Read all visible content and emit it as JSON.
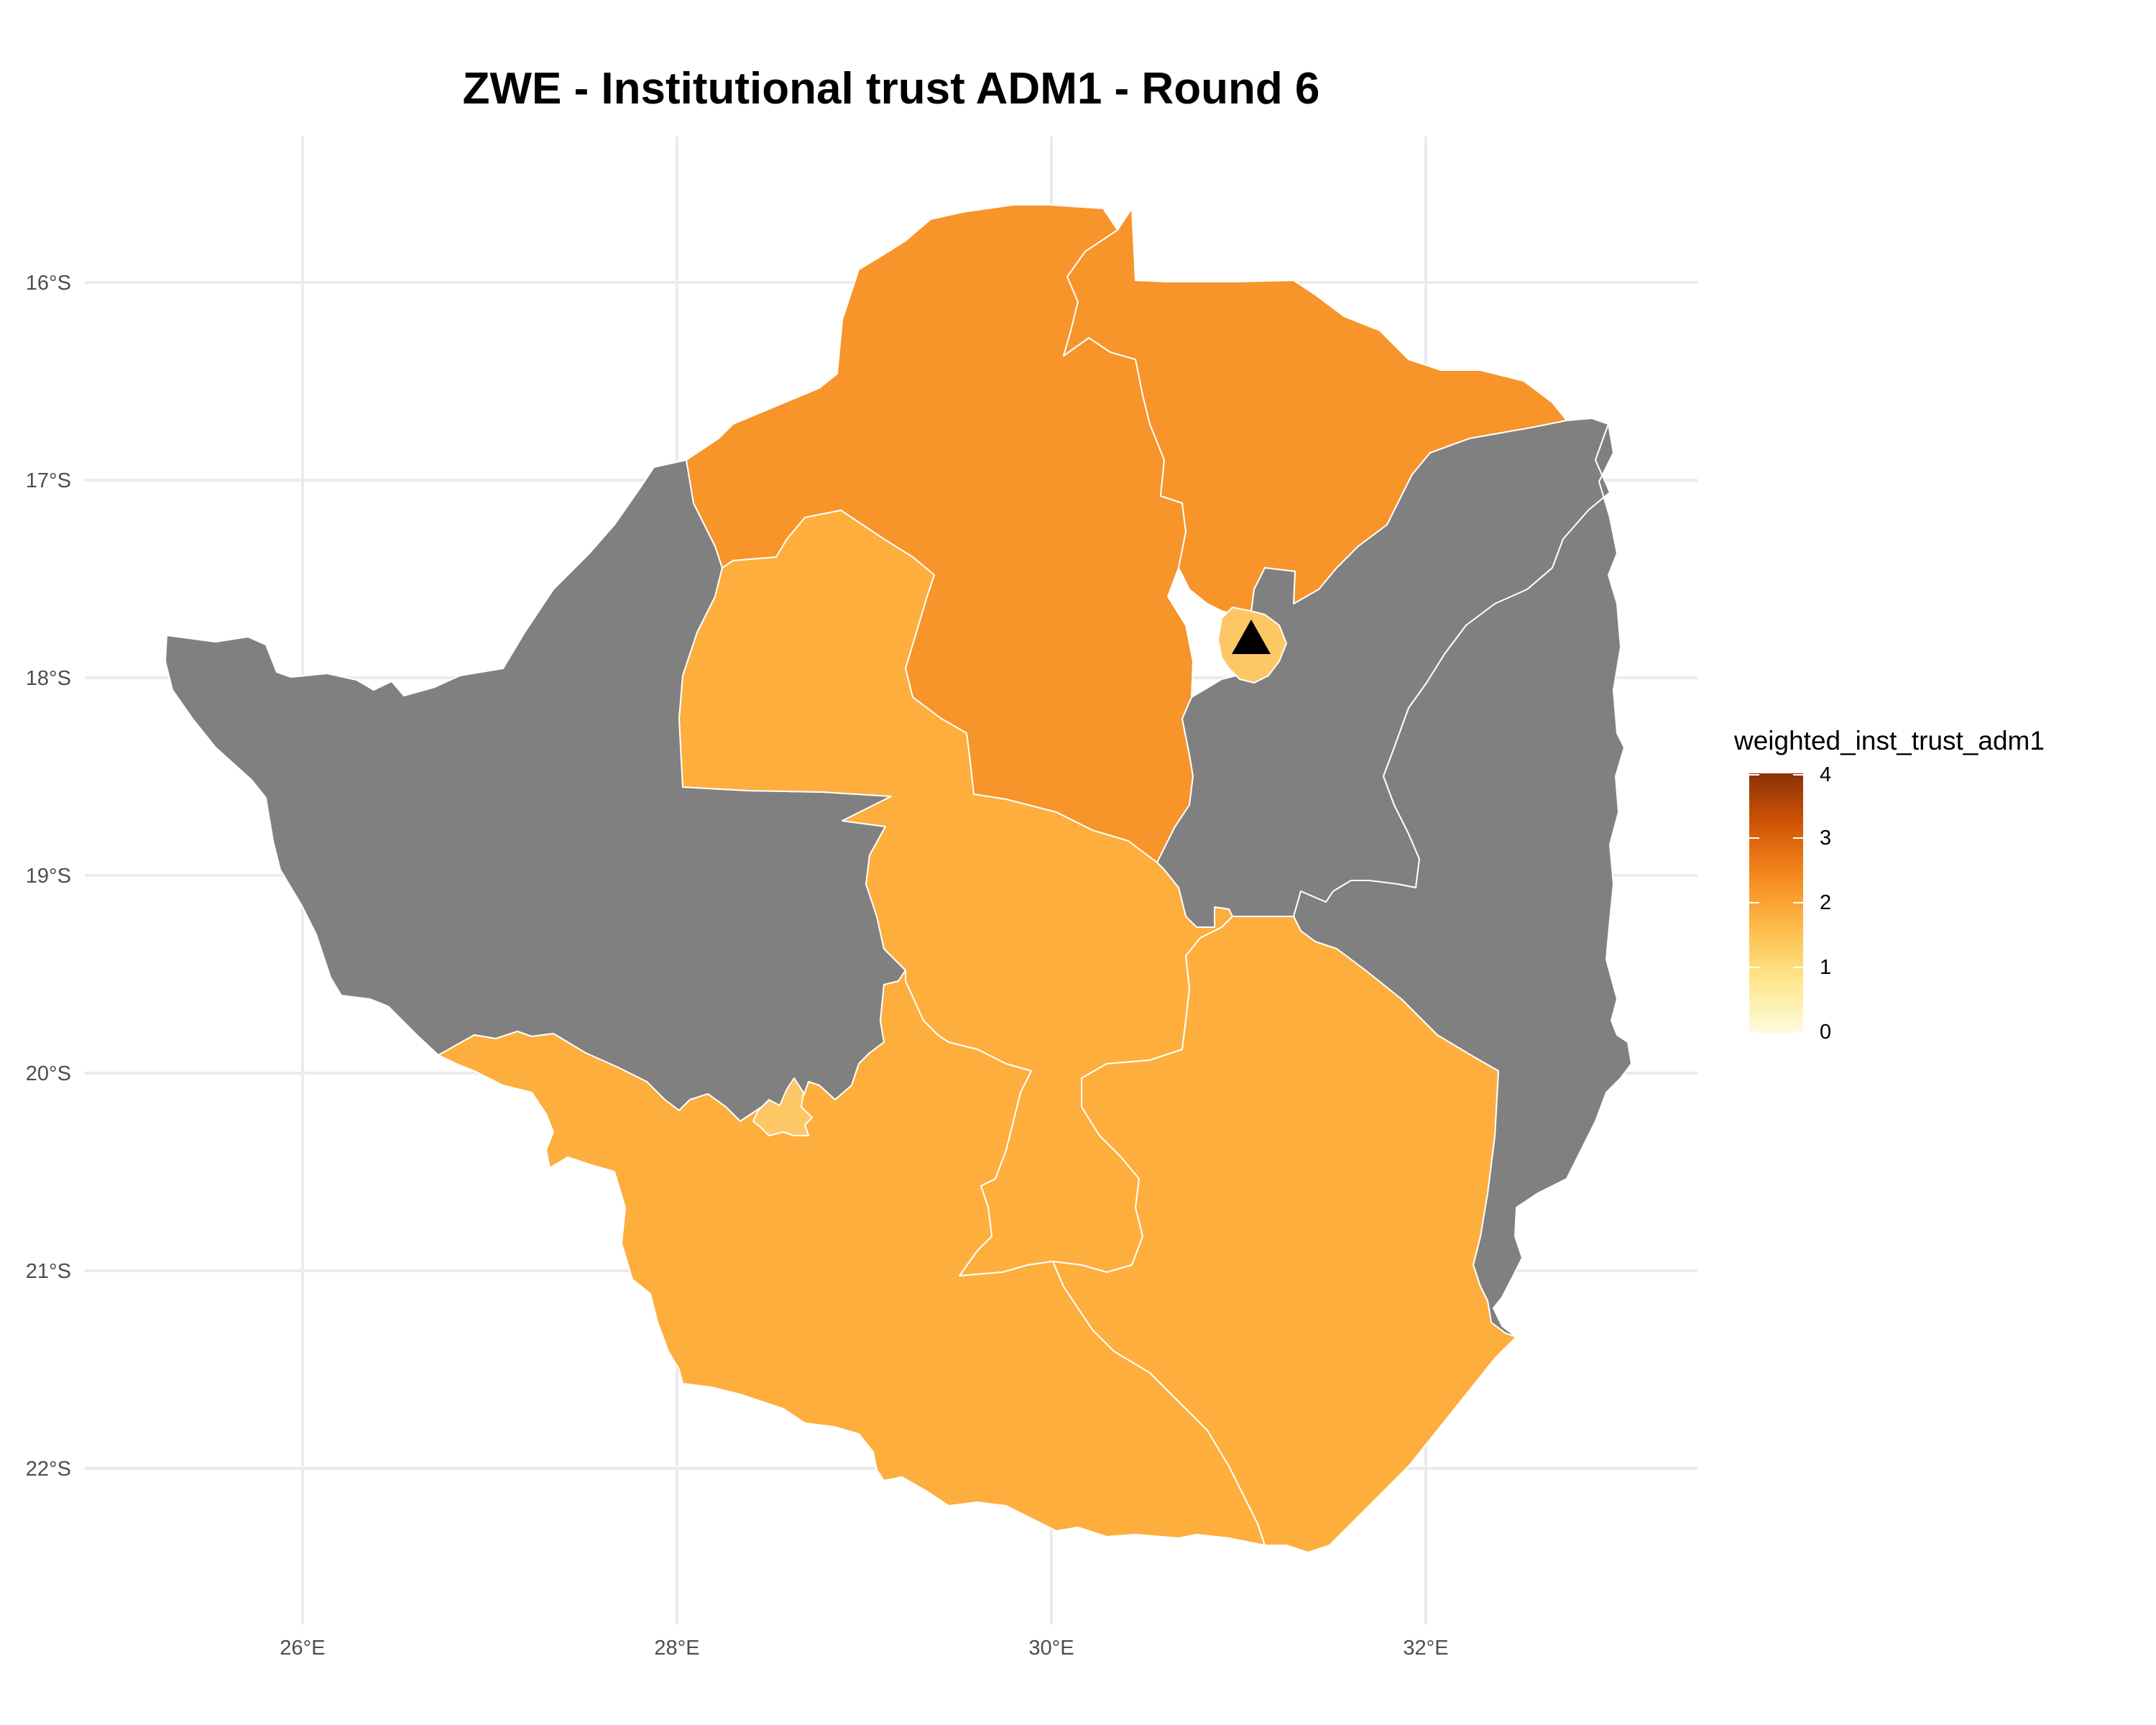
{
  "title": "ZWE - Institutional trust ADM1 - Round 6",
  "axes": {
    "x_ticks": [
      "26°E",
      "28°E",
      "30°E",
      "32°E"
    ],
    "y_ticks": [
      "16°S",
      "17°S",
      "18°S",
      "19°S",
      "20°S",
      "21°S",
      "22°S"
    ]
  },
  "legend": {
    "title": "weighted_inst_trust_adm1",
    "ticks": [
      "0",
      "1",
      "2",
      "3",
      "4"
    ],
    "range": [
      0,
      4
    ]
  },
  "colors": {
    "no_data": "#808080",
    "high": "#f7942a",
    "mid": "#fdae3d",
    "urban": "#fdc765",
    "capital_marker": "#000000"
  },
  "regions": [
    {
      "id": "mashonaland-west",
      "value": 2.3
    },
    {
      "id": "mashonaland-central",
      "value": 2.3
    },
    {
      "id": "midlands",
      "value": 1.9
    },
    {
      "id": "matabeleland-south",
      "value": 1.9
    },
    {
      "id": "masvingo",
      "value": 1.9
    },
    {
      "id": "matabeleland-north",
      "value": null
    },
    {
      "id": "mashonaland-east",
      "value": null
    },
    {
      "id": "manicaland",
      "value": null
    },
    {
      "id": "harare",
      "value": 1.5
    },
    {
      "id": "bulawayo",
      "value": 1.5
    }
  ],
  "capital": {
    "symbol": "triangle-icon"
  }
}
